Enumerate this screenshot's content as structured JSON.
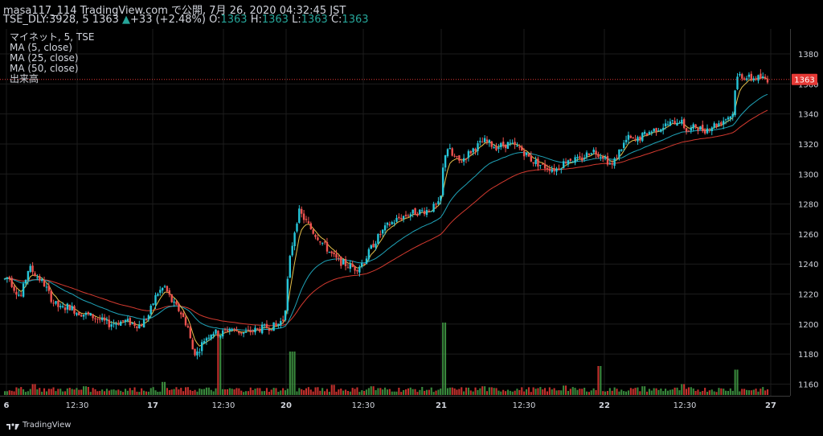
{
  "header": {
    "author": "masa117_114",
    "published": "TradingView.com で公開, 7月 26, 2020 04:32:45 JST",
    "symbol": "TSE_DLY:3928, 5",
    "last": "1363",
    "change_arrow": "▲",
    "change": "+33 (+2.48%)",
    "o_label": "O:",
    "o": "1363",
    "h_label": "H:",
    "h": "1363",
    "l_label": "L:",
    "l": "1363",
    "c_label": "C:",
    "c": "1363"
  },
  "legend": {
    "title": "マイネット, 5, TSE",
    "ma5": "MA (5, close)",
    "ma25": "MA (25, close)",
    "ma50": "MA (50, close)",
    "volume": "出来高"
  },
  "footer": {
    "brand": "TradingView",
    "icon": "tradingview-logo-icon"
  },
  "colors": {
    "background": "#000000",
    "grid": "#1c1c1c",
    "up": "#26c6da",
    "down": "#ef5350",
    "vol_up": "#43a047",
    "vol_down": "#e53935",
    "ma5": "#e6c04a",
    "ma25": "#1fa3b8",
    "ma50": "#d43a2f",
    "price_label": "#e53935"
  },
  "chart_data": {
    "type": "candlestick",
    "y_axis_ticks": [
      1160,
      1180,
      1200,
      1220,
      1240,
      1260,
      1280,
      1300,
      1320,
      1340,
      1360,
      1380
    ],
    "ylim": [
      1145,
      1390
    ],
    "current_price": 1363,
    "x_tick_labels": [
      "6",
      "12:30",
      "17",
      "12:30",
      "20",
      "12:30",
      "21",
      "12:30",
      "22",
      "12:30",
      "27"
    ],
    "grid": true,
    "bar_count": 330,
    "price_path": [
      [
        0,
        1230
      ],
      [
        5,
        1232
      ],
      [
        10,
        1225
      ],
      [
        20,
        1218
      ],
      [
        30,
        1238
      ],
      [
        40,
        1232
      ],
      [
        50,
        1226
      ],
      [
        60,
        1215
      ],
      [
        70,
        1210
      ],
      [
        80,
        1212
      ],
      [
        90,
        1208
      ],
      [
        110,
        1205
      ],
      [
        130,
        1200
      ],
      [
        150,
        1202
      ],
      [
        170,
        1199
      ],
      [
        180,
        1206
      ],
      [
        190,
        1220
      ],
      [
        200,
        1225
      ],
      [
        210,
        1214
      ],
      [
        220,
        1208
      ],
      [
        230,
        1197
      ],
      [
        234,
        1184
      ],
      [
        240,
        1180
      ],
      [
        250,
        1190
      ],
      [
        260,
        1195
      ],
      [
        270,
        1193
      ],
      [
        280,
        1197
      ],
      [
        300,
        1194
      ],
      [
        320,
        1197
      ],
      [
        340,
        1199
      ],
      [
        350,
        1204
      ],
      [
        356,
        1240
      ],
      [
        362,
        1260
      ],
      [
        368,
        1275
      ],
      [
        375,
        1270
      ],
      [
        385,
        1262
      ],
      [
        395,
        1256
      ],
      [
        405,
        1249
      ],
      [
        415,
        1243
      ],
      [
        425,
        1240
      ],
      [
        440,
        1237
      ],
      [
        450,
        1242
      ],
      [
        460,
        1252
      ],
      [
        470,
        1260
      ],
      [
        480,
        1266
      ],
      [
        495,
        1271
      ],
      [
        510,
        1274
      ],
      [
        530,
        1276
      ],
      [
        545,
        1280
      ],
      [
        550,
        1312
      ],
      [
        555,
        1318
      ],
      [
        560,
        1312
      ],
      [
        570,
        1308
      ],
      [
        585,
        1316
      ],
      [
        600,
        1322
      ],
      [
        615,
        1318
      ],
      [
        630,
        1320
      ],
      [
        645,
        1317
      ],
      [
        660,
        1309
      ],
      [
        675,
        1305
      ],
      [
        690,
        1303
      ],
      [
        705,
        1310
      ],
      [
        720,
        1309
      ],
      [
        735,
        1316
      ],
      [
        750,
        1312
      ],
      [
        760,
        1305
      ],
      [
        770,
        1316
      ],
      [
        780,
        1324
      ],
      [
        790,
        1322
      ],
      [
        800,
        1326
      ],
      [
        815,
        1330
      ],
      [
        830,
        1333
      ],
      [
        845,
        1336
      ],
      [
        855,
        1328
      ],
      [
        865,
        1332
      ],
      [
        875,
        1329
      ],
      [
        885,
        1332
      ],
      [
        895,
        1334
      ],
      [
        905,
        1338
      ],
      [
        912,
        1340
      ],
      [
        915,
        1362
      ],
      [
        920,
        1366
      ],
      [
        930,
        1364
      ],
      [
        945,
        1364
      ],
      [
        955,
        1363
      ]
    ],
    "ma_fractions": {
      "5": 0.9,
      "25": 0.2,
      "50": 0.1
    },
    "volume_spikes": [
      [
        268,
        0.85
      ],
      [
        360,
        0.6
      ],
      [
        550,
        1.0
      ],
      [
        745,
        0.4
      ],
      [
        915,
        0.35
      ],
      [
        35,
        0.15
      ],
      [
        100,
        0.12
      ],
      [
        200,
        0.18
      ],
      [
        410,
        0.14
      ],
      [
        460,
        0.12
      ],
      [
        600,
        0.12
      ],
      [
        700,
        0.13
      ],
      [
        800,
        0.12
      ],
      [
        850,
        0.15
      ]
    ]
  }
}
